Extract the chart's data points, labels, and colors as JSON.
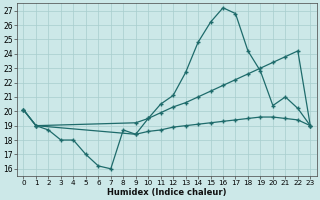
{
  "xlabel": "Humidex (Indice chaleur)",
  "xlim": [
    -0.5,
    23.5
  ],
  "ylim": [
    15.5,
    27.5
  ],
  "yticks": [
    16,
    17,
    18,
    19,
    20,
    21,
    22,
    23,
    24,
    25,
    26,
    27
  ],
  "xticks": [
    0,
    1,
    2,
    3,
    4,
    5,
    6,
    7,
    8,
    9,
    10,
    11,
    12,
    13,
    14,
    15,
    16,
    17,
    18,
    19,
    20,
    21,
    22,
    23
  ],
  "xtick_labels": [
    "0",
    "1",
    "2",
    "3",
    "4",
    "5",
    "6",
    "7",
    "8",
    "9",
    "10",
    "11",
    "12",
    "13",
    "14",
    "15",
    "16",
    "17",
    "18",
    "19",
    "20",
    "21",
    "22",
    "23"
  ],
  "background_color": "#cce8e8",
  "grid_color": "#a8cece",
  "line_color": "#1e6b6b",
  "line1_x": [
    0,
    1,
    2,
    3,
    4,
    5,
    6,
    7,
    8,
    9,
    10,
    11,
    12,
    13,
    14,
    15,
    16,
    17,
    18,
    19,
    20,
    21,
    22,
    23
  ],
  "line1_y": [
    20.1,
    19.0,
    18.7,
    18.0,
    18.0,
    17.0,
    16.2,
    16.0,
    18.7,
    18.4,
    19.5,
    20.5,
    21.1,
    22.7,
    24.8,
    26.2,
    27.2,
    26.8,
    24.2,
    22.8,
    20.4,
    21.0,
    20.2,
    19.0
  ],
  "line2_x": [
    0,
    1,
    9,
    10,
    11,
    12,
    13,
    14,
    15,
    16,
    17,
    18,
    19,
    20,
    21,
    22,
    23
  ],
  "line2_y": [
    20.1,
    19.0,
    19.2,
    19.5,
    19.9,
    20.3,
    20.6,
    21.0,
    21.4,
    21.8,
    22.2,
    22.6,
    23.0,
    23.4,
    23.8,
    24.2,
    19.0
  ],
  "line3_x": [
    0,
    1,
    9,
    10,
    11,
    12,
    13,
    14,
    15,
    16,
    17,
    18,
    19,
    20,
    21,
    22,
    23
  ],
  "line3_y": [
    20.1,
    19.0,
    18.4,
    18.6,
    18.7,
    18.9,
    19.0,
    19.1,
    19.2,
    19.3,
    19.4,
    19.5,
    19.6,
    19.6,
    19.5,
    19.4,
    19.0
  ]
}
